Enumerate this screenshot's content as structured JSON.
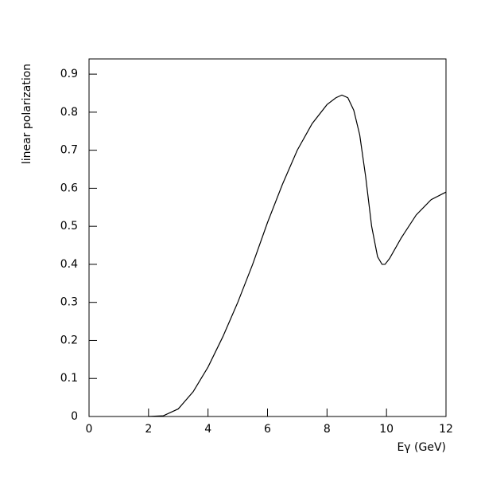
{
  "chart_data": {
    "type": "line",
    "x_label": "Eγ (GeV)",
    "y_label": "linear polarization",
    "x": [
      2,
      2.5,
      3,
      3.5,
      4,
      4.5,
      5,
      5.5,
      6,
      6.5,
      7,
      7.5,
      8,
      8.3,
      8.5,
      8.7,
      8.9,
      9.1,
      9.3,
      9.5,
      9.7,
      9.85,
      9.95,
      10.1,
      10.5,
      11,
      11.5,
      12
    ],
    "series": [
      {
        "color": "#000000",
        "values": [
          0,
          0.002,
          0.02,
          0.065,
          0.13,
          0.21,
          0.3,
          0.4,
          0.51,
          0.61,
          0.7,
          0.77,
          0.82,
          0.838,
          0.845,
          0.838,
          0.805,
          0.74,
          0.63,
          0.5,
          0.42,
          0.4,
          0.4,
          0.415,
          0.47,
          0.53,
          0.57,
          0.59
        ]
      }
    ],
    "xlim": [
      0,
      12
    ],
    "xticks": [
      0,
      2,
      4,
      6,
      8,
      10,
      12
    ],
    "ylim": [
      0,
      0.94
    ],
    "yticks": [
      0,
      0.1,
      0.2,
      0.3,
      0.4,
      0.5,
      0.6,
      0.7,
      0.8,
      0.9
    ]
  }
}
